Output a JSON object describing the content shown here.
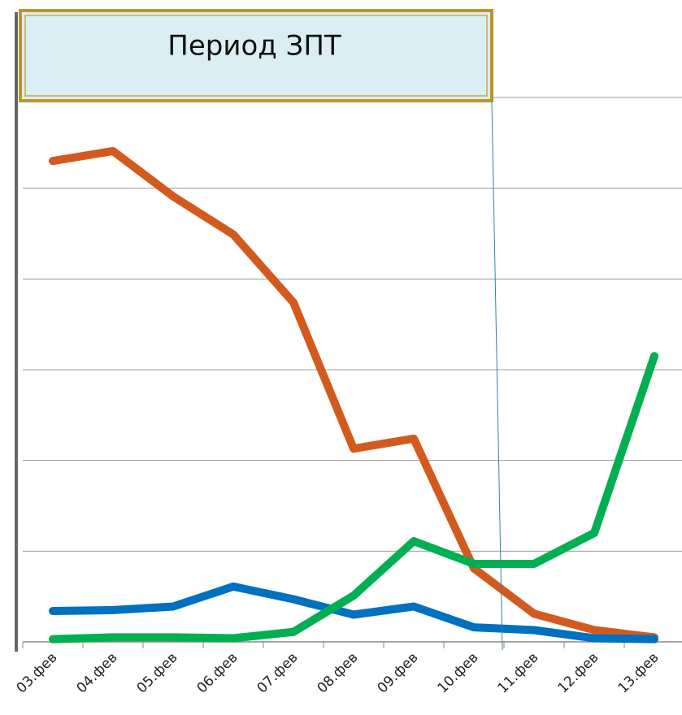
{
  "chart_data": {
    "type": "line",
    "title": "Период ЗПТ",
    "categories": [
      "03.фев",
      "04.фев",
      "05.фев",
      "06.фев",
      "07.фев",
      "08.фев",
      "09.фев",
      "10.фев",
      "11.фев",
      "12.фев",
      "13.фев"
    ],
    "series": [
      {
        "color": "#d35a1e",
        "values": [
          5.3,
          5.41,
          4.91,
          4.49,
          3.74,
          2.13,
          2.24,
          0.81,
          0.31,
          0.13,
          0.05
        ]
      },
      {
        "color": "#0070c0",
        "values": [
          0.34,
          0.35,
          0.39,
          0.61,
          0.47,
          0.3,
          0.39,
          0.16,
          0.13,
          0.04,
          0.03
        ]
      },
      {
        "color": "#00b050",
        "values": [
          0.03,
          0.05,
          0.05,
          0.04,
          0.11,
          0.51,
          1.11,
          0.86,
          0.86,
          1.2,
          3.15
        ]
      }
    ],
    "ylim": [
      0,
      6
    ],
    "yticks": [
      0,
      1,
      2,
      3,
      4,
      5,
      6
    ],
    "grid": true
  }
}
